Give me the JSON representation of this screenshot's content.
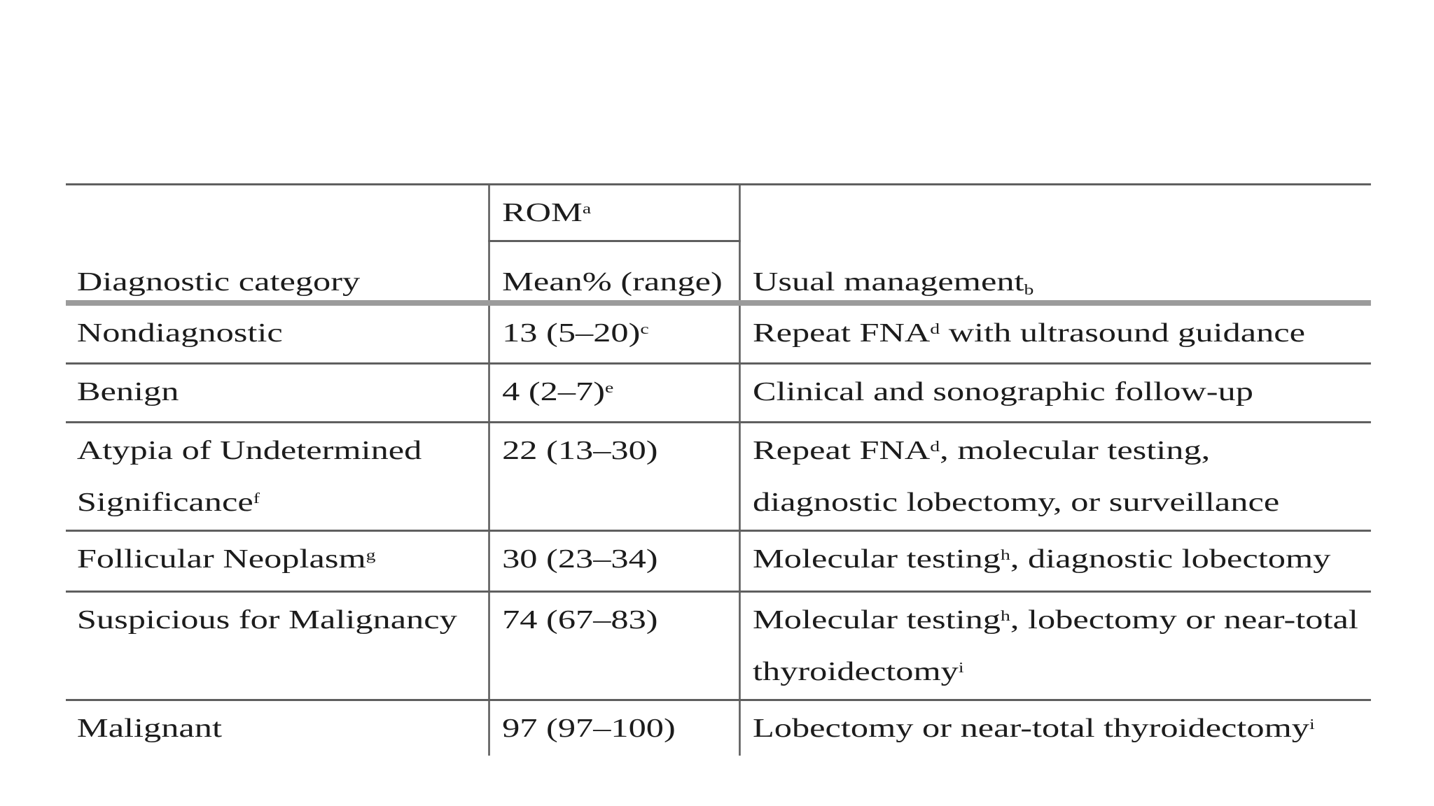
{
  "colors": {
    "page_bg": "#ffffff",
    "text": "#1c1c1c",
    "line_thin": "#5f5f5f",
    "line_thick": "#9b9b9b"
  },
  "table": {
    "rom_header": "ROM^a^",
    "columns": [
      "Diagnostic category",
      "Mean% (range)",
      "Usual management^b^"
    ],
    "rows": [
      {
        "category": "Nondiagnostic",
        "rom": "13 (5–20)^c^",
        "management": "Repeat FNA^d^ with ultrasound guidance"
      },
      {
        "category": "Benign",
        "rom": "4 (2–7)^e^",
        "management": "Clinical and sonographic follow-up"
      },
      {
        "category": "Atypia of Undetermined Significance^f^",
        "rom": "22 (13–30)",
        "management": "Repeat FNA^d^, molecular testing, diagnostic lobectomy, or surveillance"
      },
      {
        "category": "Follicular Neoplasm^g^",
        "rom": "30 (23–34)",
        "management": "Molecular testing^h^, diagnostic lobectomy"
      },
      {
        "category": "Suspicious for Malignancy",
        "rom": "74 (67–83)",
        "management": "Molecular testing^h^, lobectomy or near-total thyroidectomy^i^"
      },
      {
        "category": "Malignant",
        "rom": "97 (97–100)",
        "management": "Lobectomy or near-total thyroidectomy^i^"
      }
    ]
  }
}
